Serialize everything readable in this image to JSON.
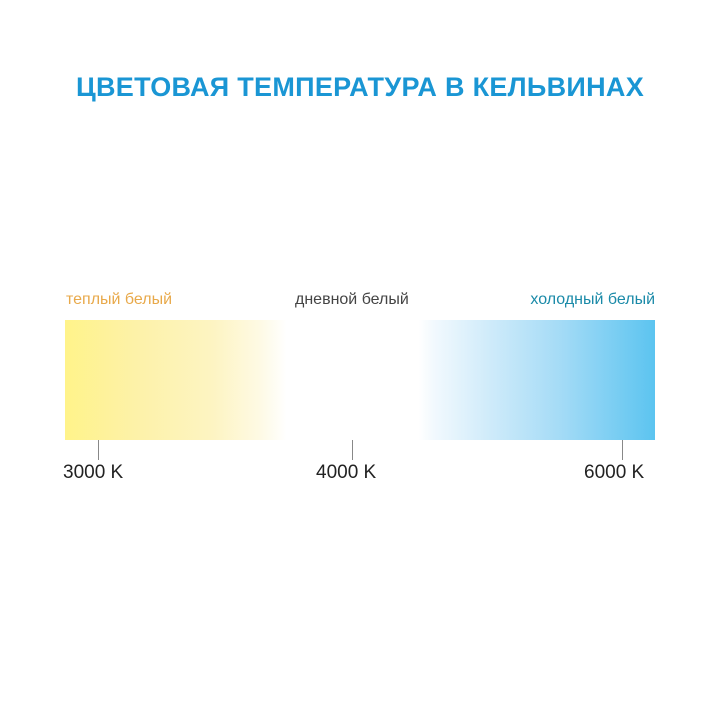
{
  "title": "ЦВЕТОВАЯ ТЕМПЕРАТУРА В КЕЛЬВИНАХ",
  "labels": {
    "warm": "теплый белый",
    "day": "дневной белый",
    "cool": "холодный белый"
  },
  "scale": [
    "3000 K",
    "4000 K",
    "6000 K"
  ],
  "colors": {
    "title": "#1a96d4",
    "warm": "#e8a94a",
    "cool": "#1a8aa8",
    "warm_end": "#fff38a",
    "cool_end": "#5cc4f0"
  }
}
